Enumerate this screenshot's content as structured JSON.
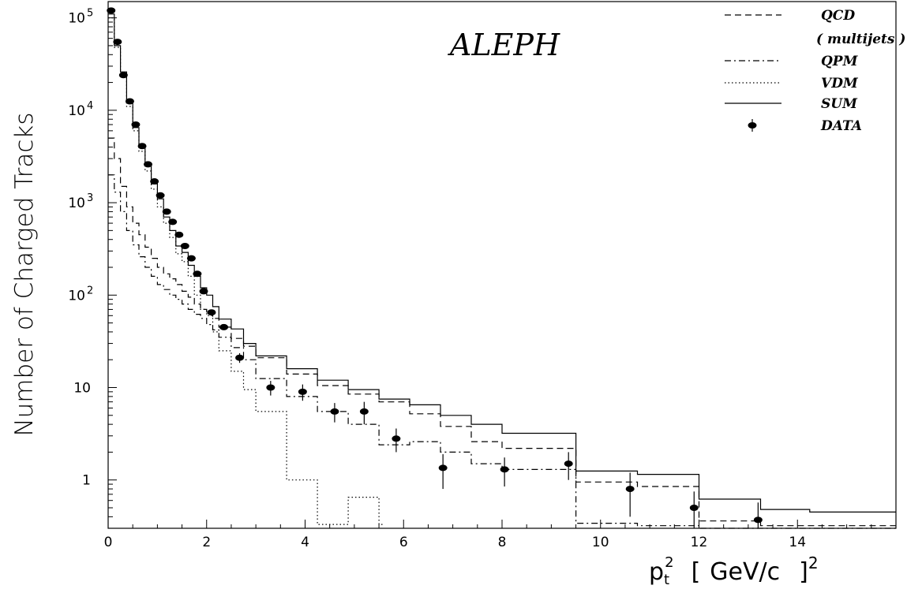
{
  "chart_data": {
    "type": "line",
    "annotation": "ALEPH",
    "ylabel": "Number of Charged Tracks",
    "xlabel": {
      "base": "p",
      "sub": "t",
      "sup": "2",
      "bracket_open": "[",
      "unit": "GeV/c",
      "bracket_close": "]",
      "unit_sup": "2"
    },
    "xlim": [
      0,
      16
    ],
    "ylim": [
      0.3,
      150000
    ],
    "yscale": "log",
    "x_ticks": [
      {
        "value": 0,
        "label": "0"
      },
      {
        "value": 2,
        "label": "2"
      },
      {
        "value": 4,
        "label": "4"
      },
      {
        "value": 6,
        "label": "6"
      },
      {
        "value": 8,
        "label": "8"
      },
      {
        "value": 10,
        "label": "10"
      },
      {
        "value": 12,
        "label": "12"
      },
      {
        "value": 14,
        "label": "14"
      }
    ],
    "y_ticks": [
      {
        "value": 1,
        "label": "1"
      },
      {
        "value": 10,
        "label": "10"
      },
      {
        "value": 100,
        "label": "10",
        "exp": "2"
      },
      {
        "value": 1000,
        "label": "10",
        "exp": "3"
      },
      {
        "value": 10000,
        "label": "10",
        "exp": "4"
      },
      {
        "value": 100000,
        "label": "10",
        "exp": "5"
      }
    ],
    "grid": false,
    "legend_position": "top-right",
    "legend": [
      {
        "label": "QCD",
        "style": "dashed"
      },
      {
        "label": "( multijets )",
        "style": "none"
      },
      {
        "label": "QPM",
        "style": "dashdot"
      },
      {
        "label": "VDM",
        "style": "dotted"
      },
      {
        "label": "SUM",
        "style": "solid"
      },
      {
        "label": "DATA",
        "style": "marker"
      }
    ],
    "series": [
      {
        "id": "sum",
        "style": "solid",
        "edges": [
          0,
          0.125,
          0.25,
          0.375,
          0.5,
          0.625,
          0.75,
          0.875,
          1.0,
          1.125,
          1.25,
          1.375,
          1.5,
          1.625,
          1.75,
          1.875,
          2.0,
          2.125,
          2.25,
          2.5,
          2.75,
          3.0,
          3.625,
          4.25,
          4.875,
          5.5,
          6.125,
          6.75,
          7.375,
          8.0,
          9.5,
          10.75,
          12.0,
          13.25,
          14.25,
          16.0
        ],
        "values": [
          110000,
          50000,
          26000,
          12000,
          6500,
          4000,
          2500,
          1600,
          1100,
          700,
          500,
          340,
          290,
          210,
          160,
          120,
          100,
          75,
          55,
          43,
          30,
          22,
          16,
          12,
          9.5,
          7.5,
          6.5,
          5.0,
          4.0,
          3.2,
          1.25,
          1.15,
          0.62,
          0.48,
          0.45
        ]
      },
      {
        "id": "qcd",
        "style": "dashed",
        "edges": [
          0,
          0.125,
          0.25,
          0.375,
          0.5,
          0.625,
          0.75,
          0.875,
          1.0,
          1.125,
          1.25,
          1.375,
          1.5,
          1.625,
          1.75,
          1.875,
          2.0,
          2.125,
          2.25,
          2.5,
          2.75,
          3.0,
          3.625,
          4.25,
          4.875,
          5.5,
          6.125,
          6.75,
          7.375,
          8.0,
          9.5,
          10.75,
          12.0,
          13.25,
          14.25,
          16.0
        ],
        "values": [
          5000,
          3000,
          1500,
          900,
          600,
          450,
          330,
          250,
          200,
          170,
          150,
          130,
          110,
          95,
          80,
          70,
          62,
          56,
          45,
          34,
          28,
          21,
          14,
          10.5,
          8.5,
          7.0,
          5.2,
          3.8,
          2.6,
          2.2,
          0.95,
          0.85,
          0.36,
          0.32,
          0.32
        ]
      },
      {
        "id": "qpm",
        "style": "dashdot",
        "edges": [
          0,
          0.125,
          0.25,
          0.375,
          0.5,
          0.625,
          0.75,
          0.875,
          1.0,
          1.125,
          1.25,
          1.375,
          1.5,
          1.625,
          1.75,
          1.875,
          2.0,
          2.125,
          2.25,
          2.5,
          2.75,
          3.0,
          3.625,
          4.25,
          4.875,
          5.5,
          6.125,
          6.75,
          7.375,
          8.0,
          9.5,
          10.75,
          12.0,
          13.25,
          14.25,
          16.0
        ],
        "values": [
          2000,
          1300,
          800,
          500,
          350,
          260,
          200,
          160,
          130,
          115,
          100,
          90,
          80,
          70,
          62,
          56,
          48,
          42,
          35,
          27,
          20,
          12.5,
          8.0,
          5.5,
          4.0,
          2.4,
          2.6,
          2.0,
          1.5,
          1.3,
          0.34,
          0.32,
          0.3,
          0.3,
          0.3
        ]
      },
      {
        "id": "vdm",
        "style": "dotted",
        "edges": [
          0,
          0.125,
          0.25,
          0.375,
          0.5,
          0.625,
          0.75,
          0.875,
          1.0,
          1.125,
          1.25,
          1.375,
          1.5,
          1.625,
          1.75,
          1.875,
          2.0,
          2.125,
          2.25,
          2.5,
          2.75,
          3.0,
          3.625,
          4.25,
          4.875,
          5.5,
          5.6
        ],
        "values": [
          100000,
          48000,
          24000,
          11000,
          6000,
          3600,
          2200,
          1400,
          900,
          600,
          420,
          280,
          230,
          160,
          100,
          70,
          60,
          40,
          25,
          15,
          9.5,
          5.5,
          1.0,
          0.33,
          0.65,
          0.33
        ]
      }
    ],
    "data_points": [
      {
        "x": 0.06,
        "y": 120000,
        "err": 0
      },
      {
        "x": 0.19,
        "y": 55000,
        "err": 0
      },
      {
        "x": 0.31,
        "y": 24000,
        "err": 0
      },
      {
        "x": 0.44,
        "y": 12500,
        "err": 0
      },
      {
        "x": 0.56,
        "y": 7000,
        "err": 0
      },
      {
        "x": 0.69,
        "y": 4100,
        "err": 0
      },
      {
        "x": 0.81,
        "y": 2600,
        "err": 0
      },
      {
        "x": 0.94,
        "y": 1700,
        "err": 0
      },
      {
        "x": 1.06,
        "y": 1200,
        "err": 0
      },
      {
        "x": 1.19,
        "y": 800,
        "err": 0
      },
      {
        "x": 1.31,
        "y": 620,
        "err": 0
      },
      {
        "x": 1.44,
        "y": 450,
        "err": 0
      },
      {
        "x": 1.56,
        "y": 340,
        "err": 0
      },
      {
        "x": 1.69,
        "y": 250,
        "err": 0
      },
      {
        "x": 1.81,
        "y": 170,
        "err": 0
      },
      {
        "x": 1.94,
        "y": 110,
        "err": 0
      },
      {
        "x": 2.1,
        "y": 65,
        "err": 0
      },
      {
        "x": 2.35,
        "y": 45,
        "err": 0
      },
      {
        "x": 2.67,
        "y": 21,
        "err": 2.5
      },
      {
        "x": 3.3,
        "y": 10,
        "err": 1.8
      },
      {
        "x": 3.95,
        "y": 9.0,
        "err": 1.8
      },
      {
        "x": 4.6,
        "y": 5.5,
        "err": 1.3
      },
      {
        "x": 5.2,
        "y": 5.5,
        "err": 1.5
      },
      {
        "x": 5.85,
        "y": 2.8,
        "err": 0.8
      },
      {
        "x": 6.8,
        "y": 1.35,
        "err": 0.55
      },
      {
        "x": 8.05,
        "y": 1.3,
        "err": 0.45
      },
      {
        "x": 9.35,
        "y": 1.5,
        "err": 0.5
      },
      {
        "x": 10.6,
        "y": 0.8,
        "err": 0.4
      },
      {
        "x": 11.9,
        "y": 0.5,
        "err": 0.25
      },
      {
        "x": 13.2,
        "y": 0.37,
        "err": 0.2
      }
    ]
  }
}
